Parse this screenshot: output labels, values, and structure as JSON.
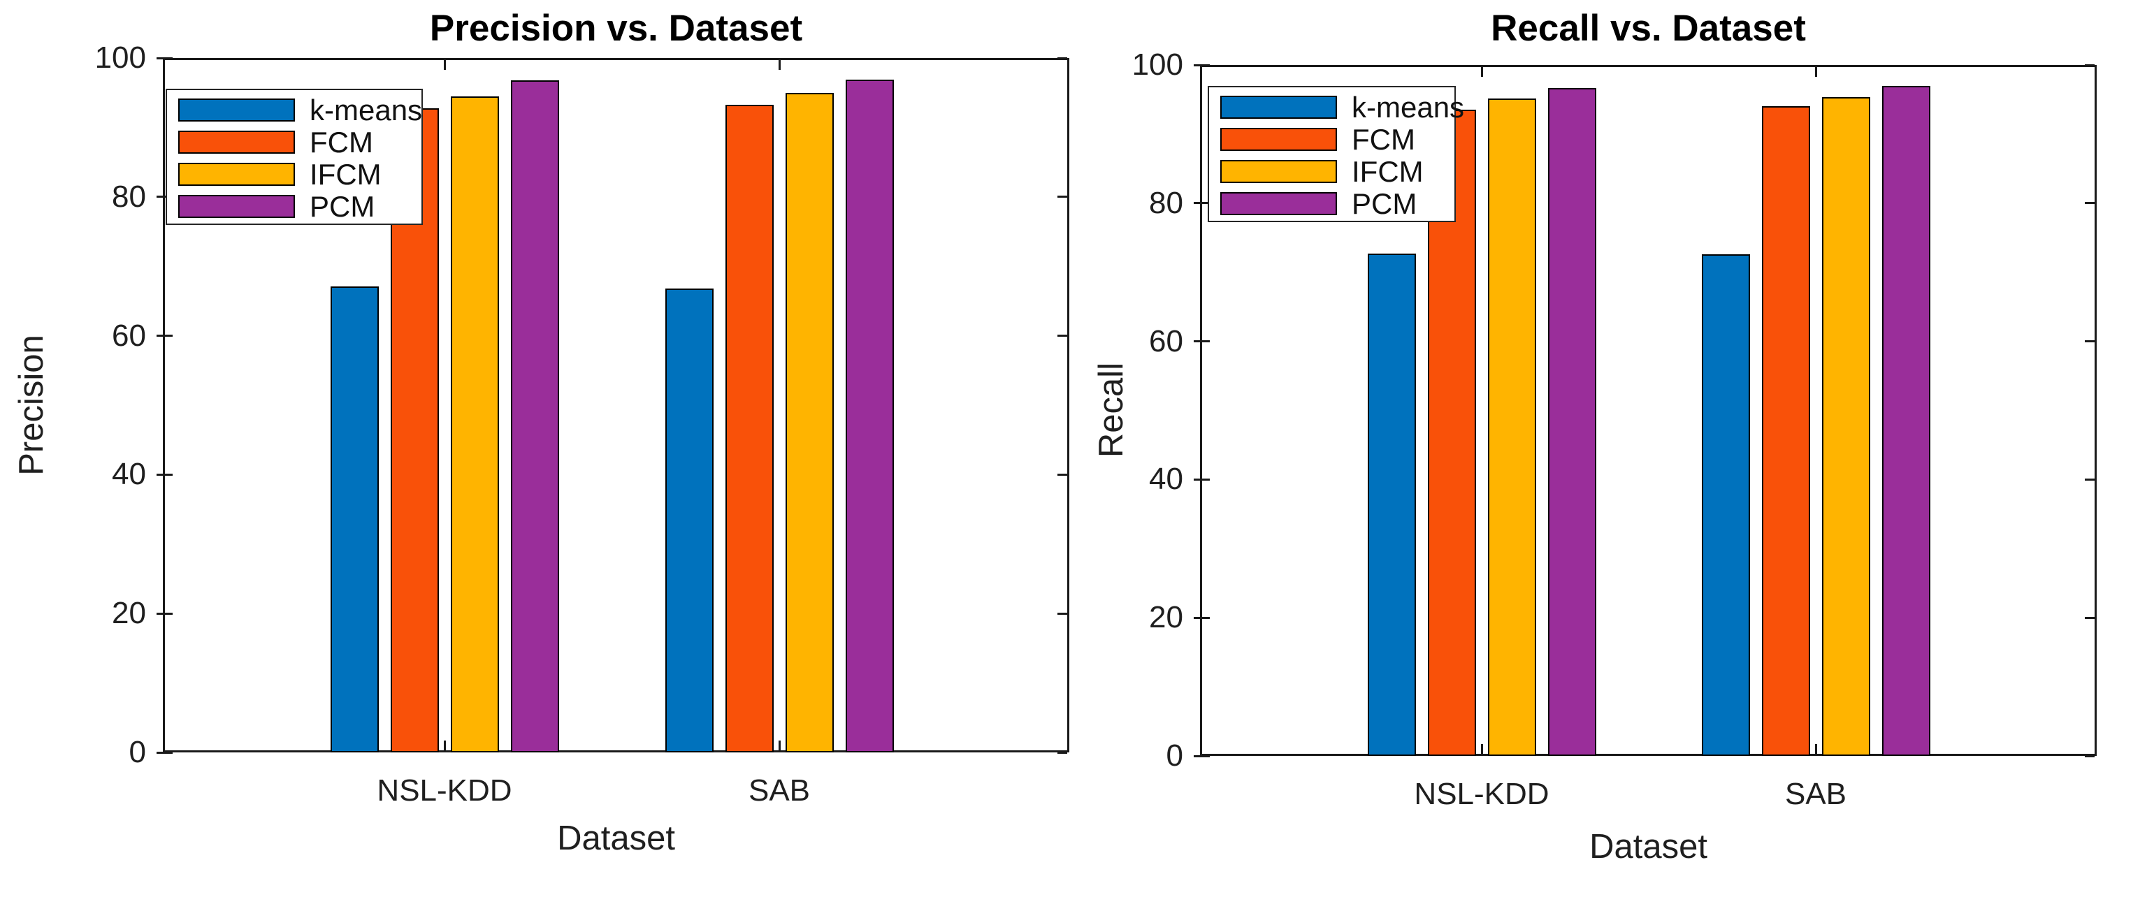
{
  "figure": {
    "background_color": "#ffffff",
    "axis_color": "#1a1a1a",
    "bar_edge_color": "#000000"
  },
  "chart_data": [
    {
      "type": "bar",
      "title": "Precision vs. Dataset",
      "xlabel": "Dataset",
      "ylabel": "Precision",
      "categories": [
        "NSL-KDD",
        "SAB"
      ],
      "ylim": [
        0,
        100
      ],
      "y_ticks": [
        0,
        20,
        40,
        60,
        80,
        100
      ],
      "grid": false,
      "legend_position": "top-left",
      "series": [
        {
          "name": "k-means",
          "color": "#0072BD",
          "values": [
            67.1,
            66.8
          ]
        },
        {
          "name": "FCM",
          "color": "#F95109",
          "values": [
            92.8,
            93.3
          ]
        },
        {
          "name": "IFCM",
          "color": "#FFB400",
          "values": [
            94.5,
            95.0
          ]
        },
        {
          "name": "PCM",
          "color": "#9A2E9A",
          "values": [
            96.8,
            96.9
          ]
        }
      ]
    },
    {
      "type": "bar",
      "title": "Recall vs. Dataset",
      "xlabel": "Dataset",
      "ylabel": "Recall",
      "categories": [
        "NSL-KDD",
        "SAB"
      ],
      "ylim": [
        0,
        100
      ],
      "y_ticks": [
        0,
        20,
        40,
        60,
        80,
        100
      ],
      "grid": false,
      "legend_position": "top-left",
      "series": [
        {
          "name": "k-means",
          "color": "#0072BD",
          "values": [
            72.7,
            72.6
          ]
        },
        {
          "name": "FCM",
          "color": "#F95109",
          "values": [
            93.5,
            94.0
          ]
        },
        {
          "name": "IFCM",
          "color": "#FFB400",
          "values": [
            95.1,
            95.3
          ]
        },
        {
          "name": "PCM",
          "color": "#9A2E9A",
          "values": [
            96.7,
            97.0
          ]
        }
      ]
    }
  ]
}
